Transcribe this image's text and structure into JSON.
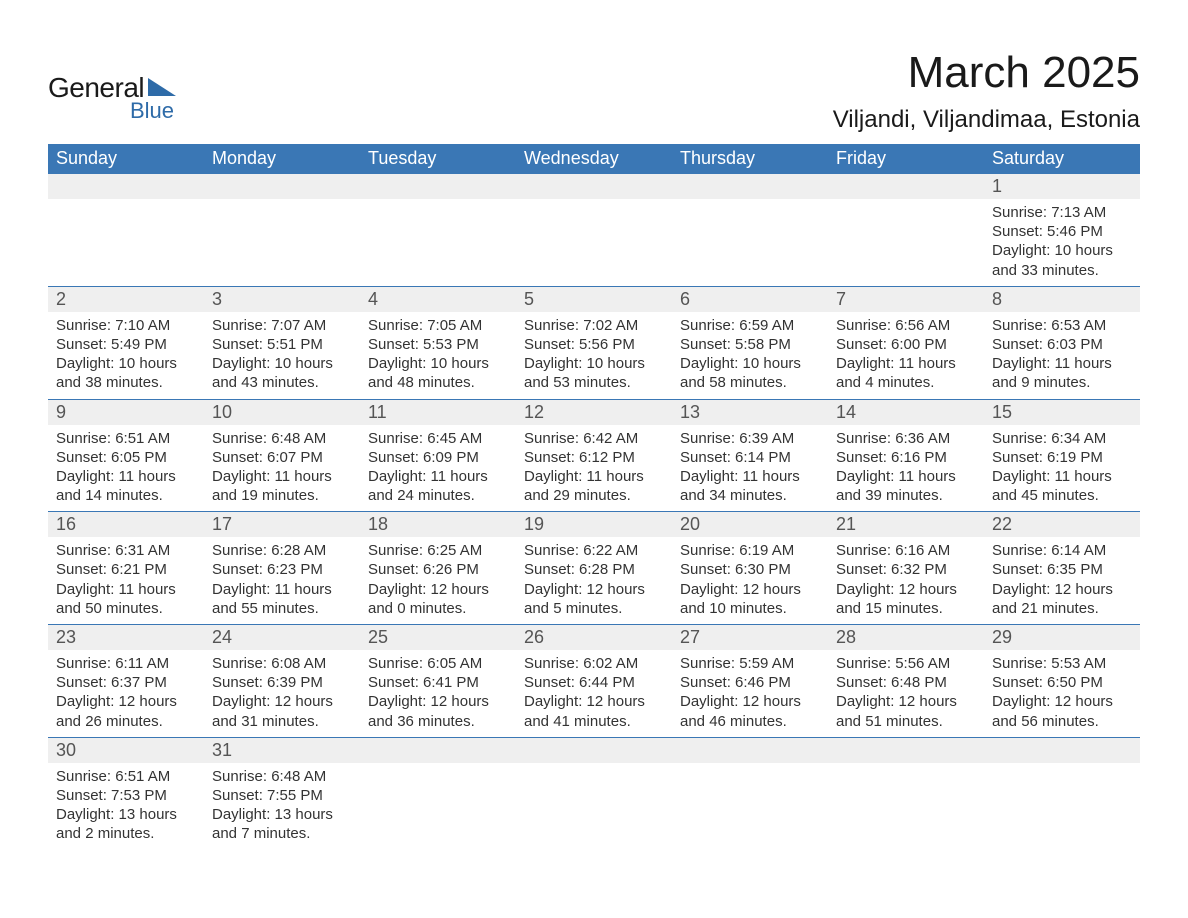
{
  "logo": {
    "text_general": "General",
    "text_blue": "Blue",
    "shape_color": "#2e6ba8"
  },
  "header": {
    "month_title": "March 2025",
    "location": "Viljandi, Viljandimaa, Estonia"
  },
  "calendar": {
    "type": "table",
    "header_bg": "#3a77b5",
    "header_fg": "#ffffff",
    "daynum_bg": "#efefef",
    "divider_color": "#3a77b5",
    "text_color": "#333333",
    "columns": [
      "Sunday",
      "Monday",
      "Tuesday",
      "Wednesday",
      "Thursday",
      "Friday",
      "Saturday"
    ],
    "weeks": [
      [
        null,
        null,
        null,
        null,
        null,
        null,
        {
          "n": "1",
          "sunrise": "Sunrise: 7:13 AM",
          "sunset": "Sunset: 5:46 PM",
          "day1": "Daylight: 10 hours",
          "day2": "and 33 minutes."
        }
      ],
      [
        {
          "n": "2",
          "sunrise": "Sunrise: 7:10 AM",
          "sunset": "Sunset: 5:49 PM",
          "day1": "Daylight: 10 hours",
          "day2": "and 38 minutes."
        },
        {
          "n": "3",
          "sunrise": "Sunrise: 7:07 AM",
          "sunset": "Sunset: 5:51 PM",
          "day1": "Daylight: 10 hours",
          "day2": "and 43 minutes."
        },
        {
          "n": "4",
          "sunrise": "Sunrise: 7:05 AM",
          "sunset": "Sunset: 5:53 PM",
          "day1": "Daylight: 10 hours",
          "day2": "and 48 minutes."
        },
        {
          "n": "5",
          "sunrise": "Sunrise: 7:02 AM",
          "sunset": "Sunset: 5:56 PM",
          "day1": "Daylight: 10 hours",
          "day2": "and 53 minutes."
        },
        {
          "n": "6",
          "sunrise": "Sunrise: 6:59 AM",
          "sunset": "Sunset: 5:58 PM",
          "day1": "Daylight: 10 hours",
          "day2": "and 58 minutes."
        },
        {
          "n": "7",
          "sunrise": "Sunrise: 6:56 AM",
          "sunset": "Sunset: 6:00 PM",
          "day1": "Daylight: 11 hours",
          "day2": "and 4 minutes."
        },
        {
          "n": "8",
          "sunrise": "Sunrise: 6:53 AM",
          "sunset": "Sunset: 6:03 PM",
          "day1": "Daylight: 11 hours",
          "day2": "and 9 minutes."
        }
      ],
      [
        {
          "n": "9",
          "sunrise": "Sunrise: 6:51 AM",
          "sunset": "Sunset: 6:05 PM",
          "day1": "Daylight: 11 hours",
          "day2": "and 14 minutes."
        },
        {
          "n": "10",
          "sunrise": "Sunrise: 6:48 AM",
          "sunset": "Sunset: 6:07 PM",
          "day1": "Daylight: 11 hours",
          "day2": "and 19 minutes."
        },
        {
          "n": "11",
          "sunrise": "Sunrise: 6:45 AM",
          "sunset": "Sunset: 6:09 PM",
          "day1": "Daylight: 11 hours",
          "day2": "and 24 minutes."
        },
        {
          "n": "12",
          "sunrise": "Sunrise: 6:42 AM",
          "sunset": "Sunset: 6:12 PM",
          "day1": "Daylight: 11 hours",
          "day2": "and 29 minutes."
        },
        {
          "n": "13",
          "sunrise": "Sunrise: 6:39 AM",
          "sunset": "Sunset: 6:14 PM",
          "day1": "Daylight: 11 hours",
          "day2": "and 34 minutes."
        },
        {
          "n": "14",
          "sunrise": "Sunrise: 6:36 AM",
          "sunset": "Sunset: 6:16 PM",
          "day1": "Daylight: 11 hours",
          "day2": "and 39 minutes."
        },
        {
          "n": "15",
          "sunrise": "Sunrise: 6:34 AM",
          "sunset": "Sunset: 6:19 PM",
          "day1": "Daylight: 11 hours",
          "day2": "and 45 minutes."
        }
      ],
      [
        {
          "n": "16",
          "sunrise": "Sunrise: 6:31 AM",
          "sunset": "Sunset: 6:21 PM",
          "day1": "Daylight: 11 hours",
          "day2": "and 50 minutes."
        },
        {
          "n": "17",
          "sunrise": "Sunrise: 6:28 AM",
          "sunset": "Sunset: 6:23 PM",
          "day1": "Daylight: 11 hours",
          "day2": "and 55 minutes."
        },
        {
          "n": "18",
          "sunrise": "Sunrise: 6:25 AM",
          "sunset": "Sunset: 6:26 PM",
          "day1": "Daylight: 12 hours",
          "day2": "and 0 minutes."
        },
        {
          "n": "19",
          "sunrise": "Sunrise: 6:22 AM",
          "sunset": "Sunset: 6:28 PM",
          "day1": "Daylight: 12 hours",
          "day2": "and 5 minutes."
        },
        {
          "n": "20",
          "sunrise": "Sunrise: 6:19 AM",
          "sunset": "Sunset: 6:30 PM",
          "day1": "Daylight: 12 hours",
          "day2": "and 10 minutes."
        },
        {
          "n": "21",
          "sunrise": "Sunrise: 6:16 AM",
          "sunset": "Sunset: 6:32 PM",
          "day1": "Daylight: 12 hours",
          "day2": "and 15 minutes."
        },
        {
          "n": "22",
          "sunrise": "Sunrise: 6:14 AM",
          "sunset": "Sunset: 6:35 PM",
          "day1": "Daylight: 12 hours",
          "day2": "and 21 minutes."
        }
      ],
      [
        {
          "n": "23",
          "sunrise": "Sunrise: 6:11 AM",
          "sunset": "Sunset: 6:37 PM",
          "day1": "Daylight: 12 hours",
          "day2": "and 26 minutes."
        },
        {
          "n": "24",
          "sunrise": "Sunrise: 6:08 AM",
          "sunset": "Sunset: 6:39 PM",
          "day1": "Daylight: 12 hours",
          "day2": "and 31 minutes."
        },
        {
          "n": "25",
          "sunrise": "Sunrise: 6:05 AM",
          "sunset": "Sunset: 6:41 PM",
          "day1": "Daylight: 12 hours",
          "day2": "and 36 minutes."
        },
        {
          "n": "26",
          "sunrise": "Sunrise: 6:02 AM",
          "sunset": "Sunset: 6:44 PM",
          "day1": "Daylight: 12 hours",
          "day2": "and 41 minutes."
        },
        {
          "n": "27",
          "sunrise": "Sunrise: 5:59 AM",
          "sunset": "Sunset: 6:46 PM",
          "day1": "Daylight: 12 hours",
          "day2": "and 46 minutes."
        },
        {
          "n": "28",
          "sunrise": "Sunrise: 5:56 AM",
          "sunset": "Sunset: 6:48 PM",
          "day1": "Daylight: 12 hours",
          "day2": "and 51 minutes."
        },
        {
          "n": "29",
          "sunrise": "Sunrise: 5:53 AM",
          "sunset": "Sunset: 6:50 PM",
          "day1": "Daylight: 12 hours",
          "day2": "and 56 minutes."
        }
      ],
      [
        {
          "n": "30",
          "sunrise": "Sunrise: 6:51 AM",
          "sunset": "Sunset: 7:53 PM",
          "day1": "Daylight: 13 hours",
          "day2": "and 2 minutes."
        },
        {
          "n": "31",
          "sunrise": "Sunrise: 6:48 AM",
          "sunset": "Sunset: 7:55 PM",
          "day1": "Daylight: 13 hours",
          "day2": "and 7 minutes."
        },
        null,
        null,
        null,
        null,
        null
      ]
    ]
  }
}
